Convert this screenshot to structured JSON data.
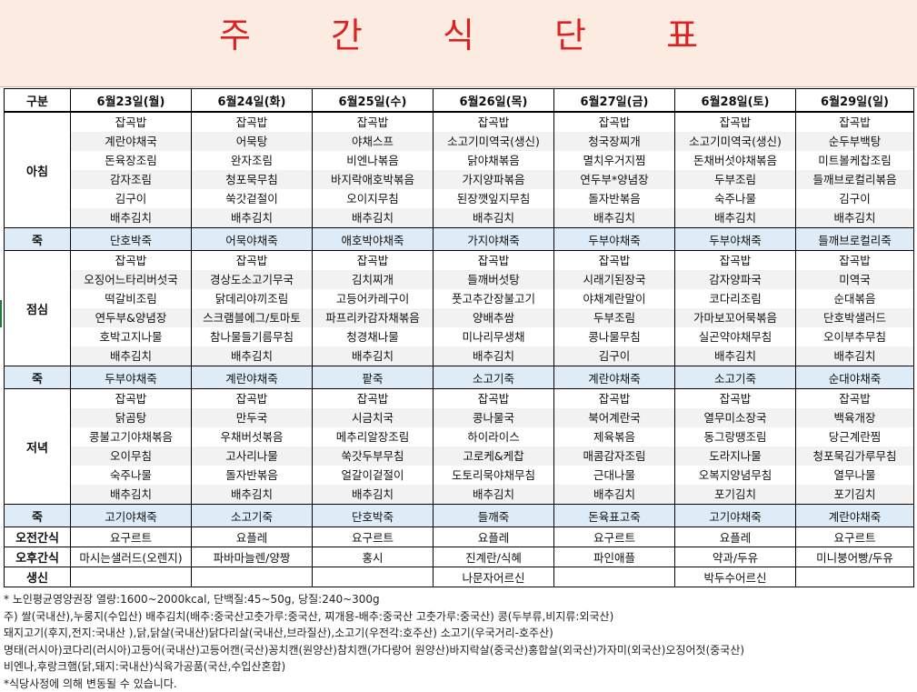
{
  "title": "주 간 식 단 표",
  "header": {
    "label": "구분",
    "days": [
      "6월23일(월)",
      "6월24일(화)",
      "6월25일(수)",
      "6월26일(목)",
      "6월27일(금)",
      "6월28일(토)",
      "6월29일(일)"
    ]
  },
  "breakfast": {
    "label": "아침",
    "items": [
      [
        "잡곡밥",
        "계란야채국",
        "돈육장조림",
        "감자조림",
        "김구이",
        "배추김치"
      ],
      [
        "잡곡밥",
        "어묵탕",
        "완자조림",
        "청포묵무침",
        "쑥갓겉절이",
        "배추김치"
      ],
      [
        "잡곡밥",
        "야채스프",
        "비엔나볶음",
        "바지락애호박볶음",
        "오이지무침",
        "배추김치"
      ],
      [
        "잡곡밥",
        "소고기미역국(생신)",
        "닭야채볶음",
        "가지양파볶음",
        "된장깻잎지무침",
        "배추김치"
      ],
      [
        "잡곡밥",
        "청국장찌개",
        "멸치우거지찜",
        "연두부*양념장",
        "돌자반볶음",
        "배추김치"
      ],
      [
        "잡곡밥",
        "소고기미역국(생신)",
        "돈채버섯야채볶음",
        "두부조림",
        "숙주나물",
        "배추김치"
      ],
      [
        "잡곡밥",
        "순두부백탕",
        "미트볼케찹조림",
        "들깨브로컬리볶음",
        "김구이",
        "배추김치"
      ]
    ]
  },
  "porridge1": {
    "label": "죽",
    "items": [
      "단호박죽",
      "어묵야채죽",
      "애호박야채죽",
      "가지야채죽",
      "두부야채죽",
      "두부야채죽",
      "들깨브로컬리죽"
    ]
  },
  "lunch": {
    "label": "점심",
    "items": [
      [
        "잡곡밥",
        "오징어느타리버섯국",
        "떡갈비조림",
        "연두부&양념장",
        "호박고지나물",
        "배추김치"
      ],
      [
        "잡곡밥",
        "경상도소고기무국",
        "닭데리야끼조림",
        "스크램블에그/토마토",
        "참나물들기름무침",
        "배추김치"
      ],
      [
        "잡곡밥",
        "김치찌개",
        "고등어카레구이",
        "파프리카감자채볶음",
        "청경채나물",
        "배추김치"
      ],
      [
        "잡곡밥",
        "들깨버섯탕",
        "풋고추간장불고기",
        "양배추쌈",
        "미나리무생채",
        "배추김치"
      ],
      [
        "잡곡밥",
        "시래기된장국",
        "야채계란말이",
        "두부조림",
        "콩나물무침",
        "김구이"
      ],
      [
        "잡곡밥",
        "감자양파국",
        "코다리조림",
        "가마보꼬어묵볶음",
        "실곤약야채무침",
        "배추김치"
      ],
      [
        "잡곡밥",
        "미역국",
        "순대볶음",
        "단호박샐러드",
        "오이부추무침",
        "배추김치"
      ]
    ]
  },
  "porridge2": {
    "label": "죽",
    "items": [
      "두부야채죽",
      "계란야채죽",
      "팥죽",
      "소고기죽",
      "계란야채죽",
      "소고기죽",
      "순대야채죽"
    ]
  },
  "dinner": {
    "label": "저녁",
    "items": [
      [
        "잡곡밥",
        "닭곰탕",
        "콩불고기야채볶음",
        "오이무침",
        "숙주나물",
        "배추김치"
      ],
      [
        "잡곡밥",
        "만두국",
        "우채버섯볶음",
        "고사리나물",
        "돌자반볶음",
        "배추김치"
      ],
      [
        "잡곡밥",
        "시금치국",
        "메추리알장조림",
        "쑥갓두부무침",
        "얼갈이겉절이",
        "배추김치"
      ],
      [
        "잡곡밥",
        "콩나물국",
        "하이라이스",
        "고로케&케찹",
        "도토리묵야채무침",
        "배추김치"
      ],
      [
        "잡곡밥",
        "북어계란국",
        "제육볶음",
        "매콤감자조림",
        "근대나물",
        "배추김치"
      ],
      [
        "잡곡밥",
        "열무미소장국",
        "동그랑땡조림",
        "도라지나물",
        "오복지양념무침",
        "포기김치"
      ],
      [
        "잡곡밥",
        "백육개장",
        "당근계란찜",
        "청포묵김가루무침",
        "열무나물",
        "포기김치"
      ]
    ]
  },
  "porridge3": {
    "label": "죽",
    "items": [
      "고기야채죽",
      "소고기죽",
      "단호박죽",
      "들깨죽",
      "돈육표고죽",
      "고기야채죽",
      "계란야채죽"
    ]
  },
  "am_snack": {
    "label": "오전간식",
    "items": [
      "요구르트",
      "요플레",
      "요구르트",
      "요플레",
      "요구르트",
      "요플레",
      "요구르트"
    ]
  },
  "pm_snack": {
    "label": "오후간식",
    "items": [
      "마시는샐러드(오렌지)",
      "파바마늘렌/양짱",
      "홍시",
      "진계란/식혜",
      "파인애플",
      "약과/두유",
      "미니붕어빵/두유"
    ]
  },
  "birthday": {
    "label": "생신",
    "items": [
      "",
      "",
      "",
      "나문자어르신",
      "",
      "박두수어르신",
      ""
    ]
  },
  "footnotes": [
    "* 노인평균영양권장 열량:1600~2000kcal, 단백질:45~50g, 당질:240~300g",
    "주) 쌀(국내산),누룽지(수입산) 배추김치(배추:중국산고춧가루:중국산, 찌개용-배추:중국산 고춧가루:중국산) 콩(두부류,비지류:외국산)",
    "돼지고기(후지,전지:국내산 ),닭,닭살(국내산)닭다리살(국내산,브라질산),소고기(우전각:호주산) 소고기(우국거리-호주산)",
    "명태(러시아)코다리(러시아)고등어(국내산)고등어캔(국산)꽁치캔(원양산)참치캔(가다랑어 원양산)바지락살(중국산)홍합살(외국산)가자미(외국산)오징어젓(중국산)",
    "비엔나,후랑크햄(닭,돼지:국내산)식육가공품(국산,수입산혼합)",
    "*식당사정에 의해 변동될 수 있습니다."
  ]
}
